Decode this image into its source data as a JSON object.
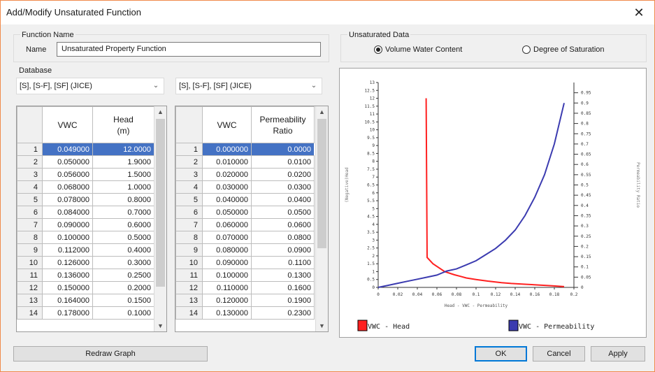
{
  "window": {
    "title": "Add/Modify Unsaturated Function",
    "close_glyph": "✕"
  },
  "function_name": {
    "group_label": "Function Name",
    "field_label": "Name",
    "value": "Unsaturated Property Function"
  },
  "database": {
    "label": "Database",
    "combo1": "[S], [S-F], [SF] (JICE)",
    "combo2": "[S], [S-F], [SF] (JICE)"
  },
  "unsaturated_data": {
    "group_label": "Unsaturated Data",
    "options": [
      "Volume Water Content",
      "Degree of Saturation"
    ],
    "selected": 0
  },
  "table_head": {
    "headers": [
      "VWC",
      "Head",
      "(m)"
    ],
    "rows": [
      [
        "1",
        "0.049000",
        "12.0000"
      ],
      [
        "2",
        "0.050000",
        "1.9000"
      ],
      [
        "3",
        "0.056000",
        "1.5000"
      ],
      [
        "4",
        "0.068000",
        "1.0000"
      ],
      [
        "5",
        "0.078000",
        "0.8000"
      ],
      [
        "6",
        "0.084000",
        "0.7000"
      ],
      [
        "7",
        "0.090000",
        "0.6000"
      ],
      [
        "8",
        "0.100000",
        "0.5000"
      ],
      [
        "9",
        "0.112000",
        "0.4000"
      ],
      [
        "10",
        "0.126000",
        "0.3000"
      ],
      [
        "11",
        "0.136000",
        "0.2500"
      ],
      [
        "12",
        "0.150000",
        "0.2000"
      ],
      [
        "13",
        "0.164000",
        "0.1500"
      ],
      [
        "14",
        "0.178000",
        "0.1000"
      ]
    ]
  },
  "table_perm": {
    "headers": [
      "VWC",
      "Permeability",
      "Ratio"
    ],
    "rows": [
      [
        "1",
        "0.000000",
        "0.0000"
      ],
      [
        "2",
        "0.010000",
        "0.0100"
      ],
      [
        "3",
        "0.020000",
        "0.0200"
      ],
      [
        "4",
        "0.030000",
        "0.0300"
      ],
      [
        "5",
        "0.040000",
        "0.0400"
      ],
      [
        "6",
        "0.050000",
        "0.0500"
      ],
      [
        "7",
        "0.060000",
        "0.0600"
      ],
      [
        "8",
        "0.070000",
        "0.0800"
      ],
      [
        "9",
        "0.080000",
        "0.0900"
      ],
      [
        "10",
        "0.090000",
        "0.1100"
      ],
      [
        "11",
        "0.100000",
        "0.1300"
      ],
      [
        "12",
        "0.110000",
        "0.1600"
      ],
      [
        "13",
        "0.120000",
        "0.1900"
      ],
      [
        "14",
        "0.130000",
        "0.2300"
      ]
    ]
  },
  "buttons": {
    "redraw": "Redraw Graph",
    "ok": "OK",
    "cancel": "Cancel",
    "apply": "Apply"
  },
  "chart_data": {
    "type": "line",
    "xlabel": "Head - VWC - Permeability",
    "ylabel_left": "(Negative)Head",
    "ylabel_right": "Permeability Ratio",
    "xlim": [
      0,
      0.2
    ],
    "ylim_left": [
      0,
      13
    ],
    "ylim_right": [
      0,
      1
    ],
    "x_ticks": [
      "0",
      "0.02",
      "0.04",
      "0.06",
      "0.08",
      "0.1",
      "0.12",
      "0.14",
      "0.16",
      "0.18",
      "0.2"
    ],
    "left_ticks": [
      "0",
      "0.5",
      "1",
      "1.5",
      "2",
      "2.5",
      "3",
      "3.5",
      "4",
      "4.5",
      "5",
      "5.5",
      "6",
      "6.5",
      "7",
      "7.5",
      "8",
      "8.5",
      "9",
      "9.5",
      "10",
      "10.5",
      "11",
      "11.5",
      "12",
      "12.5",
      "13"
    ],
    "right_ticks": [
      "0",
      "0.05",
      "0.1",
      "0.15",
      "0.2",
      "0.25",
      "0.3",
      "0.35",
      "0.4",
      "0.45",
      "0.5",
      "0.55",
      "0.6",
      "0.65",
      "0.7",
      "0.75",
      "0.8",
      "0.85",
      "0.9",
      "0.95"
    ],
    "series": [
      {
        "name": "VWC - Head",
        "color": "#ff2020",
        "axis": "left",
        "x": [
          0.049,
          0.05,
          0.056,
          0.068,
          0.078,
          0.084,
          0.09,
          0.1,
          0.112,
          0.126,
          0.136,
          0.15,
          0.164,
          0.178,
          0.19
        ],
        "y": [
          12,
          1.9,
          1.5,
          1.0,
          0.8,
          0.7,
          0.6,
          0.5,
          0.4,
          0.3,
          0.25,
          0.2,
          0.15,
          0.1,
          0.05
        ]
      },
      {
        "name": "VWC - Permeability",
        "color": "#3b3bb0",
        "axis": "right",
        "x": [
          0,
          0.01,
          0.02,
          0.03,
          0.04,
          0.05,
          0.06,
          0.07,
          0.08,
          0.09,
          0.1,
          0.11,
          0.12,
          0.13,
          0.14,
          0.15,
          0.16,
          0.17,
          0.18,
          0.19
        ],
        "y": [
          0,
          0.01,
          0.02,
          0.03,
          0.04,
          0.05,
          0.06,
          0.08,
          0.09,
          0.11,
          0.13,
          0.16,
          0.19,
          0.23,
          0.28,
          0.35,
          0.44,
          0.55,
          0.7,
          0.9
        ]
      }
    ]
  }
}
